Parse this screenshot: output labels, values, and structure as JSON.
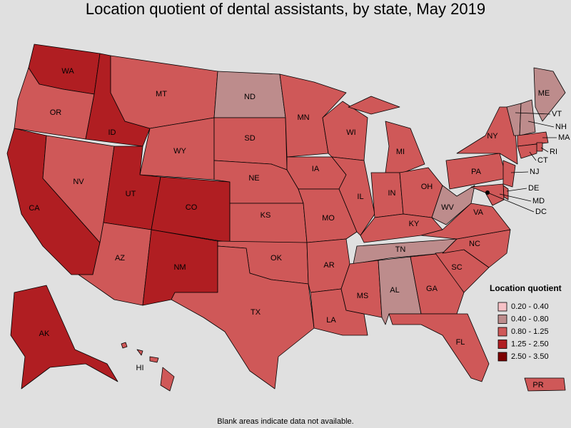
{
  "title": "Location quotient of dental assistants, by state, May 2019",
  "legend": {
    "title": "Location quotient",
    "bins": [
      {
        "label": "0.20 - 0.40",
        "color": "#f7c1c6"
      },
      {
        "label": "0.40 - 0.80",
        "color": "#bd8c8c"
      },
      {
        "label": "0.80 - 1.25",
        "color": "#cf5858"
      },
      {
        "label": "1.25 - 2.50",
        "color": "#b01e22"
      },
      {
        "label": "2.50 - 3.50",
        "color": "#7d0000"
      }
    ]
  },
  "states": [
    {
      "label": "WA",
      "class": "1.25 - 2.50"
    },
    {
      "label": "OR",
      "class": "0.80 - 1.25"
    },
    {
      "label": "CA",
      "class": "1.25 - 2.50"
    },
    {
      "label": "NV",
      "class": "0.80 - 1.25"
    },
    {
      "label": "ID",
      "class": "1.25 - 2.50"
    },
    {
      "label": "MT",
      "class": "0.80 - 1.25"
    },
    {
      "label": "WY",
      "class": "0.80 - 1.25"
    },
    {
      "label": "UT",
      "class": "1.25 - 2.50"
    },
    {
      "label": "AZ",
      "class": "0.80 - 1.25"
    },
    {
      "label": "CO",
      "class": "1.25 - 2.50"
    },
    {
      "label": "NM",
      "class": "1.25 - 2.50"
    },
    {
      "label": "ND",
      "class": "0.40 - 0.80"
    },
    {
      "label": "SD",
      "class": "0.80 - 1.25"
    },
    {
      "label": "NE",
      "class": "0.80 - 1.25"
    },
    {
      "label": "KS",
      "class": "0.80 - 1.25"
    },
    {
      "label": "OK",
      "class": "0.80 - 1.25"
    },
    {
      "label": "TX",
      "class": "0.80 - 1.25"
    },
    {
      "label": "MN",
      "class": "0.80 - 1.25"
    },
    {
      "label": "IA",
      "class": "0.80 - 1.25"
    },
    {
      "label": "MO",
      "class": "0.80 - 1.25"
    },
    {
      "label": "AR",
      "class": "0.80 - 1.25"
    },
    {
      "label": "LA",
      "class": "0.80 - 1.25"
    },
    {
      "label": "WI",
      "class": "0.80 - 1.25"
    },
    {
      "label": "IL",
      "class": "0.80 - 1.25"
    },
    {
      "label": "MI",
      "class": "0.80 - 1.25"
    },
    {
      "label": "IN",
      "class": "0.80 - 1.25"
    },
    {
      "label": "OH",
      "class": "0.80 - 1.25"
    },
    {
      "label": "KY",
      "class": "0.80 - 1.25"
    },
    {
      "label": "TN",
      "class": "0.40 - 0.80"
    },
    {
      "label": "MS",
      "class": "0.80 - 1.25"
    },
    {
      "label": "AL",
      "class": "0.40 - 0.80"
    },
    {
      "label": "GA",
      "class": "0.80 - 1.25"
    },
    {
      "label": "FL",
      "class": "0.80 - 1.25"
    },
    {
      "label": "SC",
      "class": "0.80 - 1.25"
    },
    {
      "label": "NC",
      "class": "0.80 - 1.25"
    },
    {
      "label": "VA",
      "class": "0.80 - 1.25"
    },
    {
      "label": "WV",
      "class": "0.40 - 0.80"
    },
    {
      "label": "PA",
      "class": "0.80 - 1.25"
    },
    {
      "label": "NY",
      "class": "0.80 - 1.25"
    },
    {
      "label": "ME",
      "class": "0.40 - 0.80"
    },
    {
      "label": "VT",
      "class": "0.40 - 0.80"
    },
    {
      "label": "NH",
      "class": "0.40 - 0.80"
    },
    {
      "label": "MA",
      "class": "0.80 - 1.25"
    },
    {
      "label": "RI",
      "class": "0.80 - 1.25"
    },
    {
      "label": "CT",
      "class": "0.80 - 1.25"
    },
    {
      "label": "NJ",
      "class": "0.80 - 1.25"
    },
    {
      "label": "DE",
      "class": "0.80 - 1.25"
    },
    {
      "label": "MD",
      "class": "0.80 - 1.25"
    },
    {
      "label": "DC",
      "class": "0.80 - 1.25"
    },
    {
      "label": "AK",
      "class": "1.25 - 2.50"
    },
    {
      "label": "HI",
      "class": "0.80 - 1.25"
    },
    {
      "label": "PR",
      "class": "0.80 - 1.25"
    }
  ],
  "note": "Blank areas indicate data not available."
}
